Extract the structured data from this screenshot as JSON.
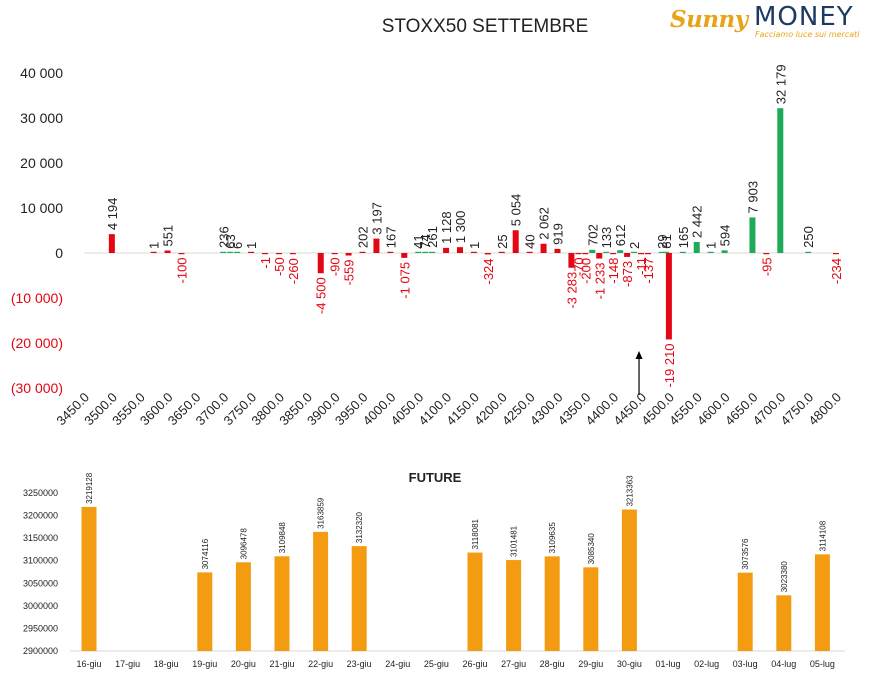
{
  "title": "STOXX50 SETTEMBRE",
  "logo": {
    "brand_sunny": "Sunny",
    "brand_money": "MONEY",
    "tagline": "Facciamo luce sui mercati"
  },
  "colors": {
    "positive": "#1faa59",
    "negative": "#e30613",
    "future": "#f39c12",
    "text": "#222222",
    "arrow": "#000000"
  },
  "chart_data": [
    {
      "type": "bar",
      "title": "STOXX50 SETTEMBRE",
      "xlabel": "",
      "ylabel": "",
      "ylim": [
        -30000,
        40000
      ],
      "y_tick_values": [
        40000,
        30000,
        20000,
        10000,
        0,
        -10000,
        -20000,
        -30000
      ],
      "y_tick_labels": [
        "40 000",
        "30 000",
        "20 000",
        "10 000",
        "0",
        "(10 000)",
        "(20 000)",
        "(30 000)"
      ],
      "x_tick_labels": [
        "3450.0",
        "3500.0",
        "3550.0",
        "3600.0",
        "3650.0",
        "3700.0",
        "3750.0",
        "3800.0",
        "3850.0",
        "3900.0",
        "3950.0",
        "4000.0",
        "4050.0",
        "4100.0",
        "4150.0",
        "4200.0",
        "4250.0",
        "4300.0",
        "4350.0",
        "4400.0",
        "4450.0",
        "4500.0",
        "4550.0",
        "4600.0",
        "4650.0",
        "4700.0",
        "4750.0",
        "4800.0"
      ],
      "strike_min": 3450,
      "strike_max": 4800,
      "annotation": "arrow pointing up at 4450",
      "arrow_strike": 4450,
      "bars": [
        {
          "strike": 3500,
          "value": 4194,
          "label": "4 194"
        },
        {
          "strike": 3575,
          "value": 1,
          "label": "1"
        },
        {
          "strike": 3600,
          "value": 551,
          "label": "551"
        },
        {
          "strike": 3625,
          "value": -100,
          "label": "-100"
        },
        {
          "strike": 3700,
          "value": 236,
          "label": "236"
        },
        {
          "strike": 3712.5,
          "value": 63,
          "label": "63"
        },
        {
          "strike": 3725,
          "value": 6,
          "label": "6"
        },
        {
          "strike": 3750,
          "value": 1,
          "label": "1"
        },
        {
          "strike": 3775,
          "value": -1,
          "label": "-1"
        },
        {
          "strike": 3800,
          "value": -50,
          "label": "-50"
        },
        {
          "strike": 3825,
          "value": -260,
          "label": "-260"
        },
        {
          "strike": 3875,
          "value": -4500,
          "label": "-4 500"
        },
        {
          "strike": 3900,
          "value": -90,
          "label": "-90"
        },
        {
          "strike": 3925,
          "value": -559,
          "label": "-559"
        },
        {
          "strike": 3950,
          "value": 202,
          "label": "202"
        },
        {
          "strike": 3975,
          "value": 3197,
          "label": "3 197"
        },
        {
          "strike": 4000,
          "value": 167,
          "label": "167"
        },
        {
          "strike": 4025,
          "value": -1075,
          "label": "-1 075"
        },
        {
          "strike": 4050,
          "value": 41,
          "label": "41"
        },
        {
          "strike": 4062.5,
          "value": 74,
          "label": "74"
        },
        {
          "strike": 4075,
          "value": 261,
          "label": "261"
        },
        {
          "strike": 4100,
          "value": 1128,
          "label": "1 128"
        },
        {
          "strike": 4125,
          "value": 1300,
          "label": "1 300"
        },
        {
          "strike": 4150,
          "value": 1,
          "label": "1"
        },
        {
          "strike": 4175,
          "value": -324,
          "label": "-324"
        },
        {
          "strike": 4200,
          "value": 25,
          "label": "25"
        },
        {
          "strike": 4225,
          "value": 5054,
          "label": "5 054"
        },
        {
          "strike": 4250,
          "value": 40,
          "label": "40"
        },
        {
          "strike": 4275,
          "value": 2062,
          "label": "2 062"
        },
        {
          "strike": 4300,
          "value": 919,
          "label": "919"
        },
        {
          "strike": 4325,
          "value": -3283,
          "label": "-3 283"
        },
        {
          "strike": 4337.5,
          "value": -70,
          "label": "-70"
        },
        {
          "strike": 4350,
          "value": -200,
          "label": "-200"
        },
        {
          "strike": 4362.5,
          "value": 702,
          "label": "702"
        },
        {
          "strike": 4375,
          "value": -1233,
          "label": "-1 233"
        },
        {
          "strike": 4387.5,
          "value": 133,
          "label": "133"
        },
        {
          "strike": 4400,
          "value": -148,
          "label": "-148"
        },
        {
          "strike": 4412.5,
          "value": 612,
          "label": "612"
        },
        {
          "strike": 4425,
          "value": -873,
          "label": "-873"
        },
        {
          "strike": 4437.5,
          "value": 2,
          "label": "2"
        },
        {
          "strike": 4450,
          "value": -11,
          "label": "-11"
        },
        {
          "strike": 4462.5,
          "value": -137,
          "label": "-137"
        },
        {
          "strike": 4487.5,
          "value": 29,
          "label": "29"
        },
        {
          "strike": 4495,
          "value": 81,
          "label": "81"
        },
        {
          "strike": 4500,
          "value": -19210,
          "label": "-19 210"
        },
        {
          "strike": 4525,
          "value": 165,
          "label": "165"
        },
        {
          "strike": 4550,
          "value": 2442,
          "label": "2 442"
        },
        {
          "strike": 4575,
          "value": 1,
          "label": "1"
        },
        {
          "strike": 4600,
          "value": 594,
          "label": "594"
        },
        {
          "strike": 4650,
          "value": 7903,
          "label": "7 903"
        },
        {
          "strike": 4675,
          "value": -95,
          "label": "-95"
        },
        {
          "strike": 4700,
          "value": 32179,
          "label": "32 179"
        },
        {
          "strike": 4750,
          "value": 250,
          "label": "250"
        },
        {
          "strike": 4800,
          "value": -234,
          "label": "-234"
        }
      ]
    },
    {
      "type": "bar",
      "title": "FUTURE",
      "xlabel": "",
      "ylabel": "",
      "ylim": [
        2900000,
        3250000
      ],
      "y_tick_labels": [
        "3250000",
        "3200000",
        "3150000",
        "3100000",
        "3050000",
        "3000000",
        "2950000",
        "2900000"
      ],
      "y_tick_values": [
        3250000,
        3200000,
        3150000,
        3100000,
        3050000,
        3000000,
        2950000,
        2900000
      ],
      "categories": [
        "16-giu",
        "17-giu",
        "18-giu",
        "19-giu",
        "20-giu",
        "21-giu",
        "22-giu",
        "23-giu",
        "24-giu",
        "25-giu",
        "26-giu",
        "27-giu",
        "28-giu",
        "29-giu",
        "30-giu",
        "01-lug",
        "02-lug",
        "03-lug",
        "04-lug",
        "05-lug"
      ],
      "values": [
        3219128,
        null,
        null,
        3074116,
        3096478,
        3109848,
        3163859,
        3132320,
        null,
        null,
        3118081,
        3101481,
        3109635,
        3085340,
        3213363,
        null,
        null,
        3073576,
        3023380,
        3114108
      ],
      "value_labels": [
        "3219128",
        "",
        "",
        "3074116",
        "3096478",
        "3109848",
        "3163859",
        "3132320",
        "",
        "",
        "3118081",
        "3101481",
        "3109635",
        "3085340",
        "3213363",
        "",
        "",
        "3073576",
        "3023380",
        "3114108"
      ]
    }
  ]
}
